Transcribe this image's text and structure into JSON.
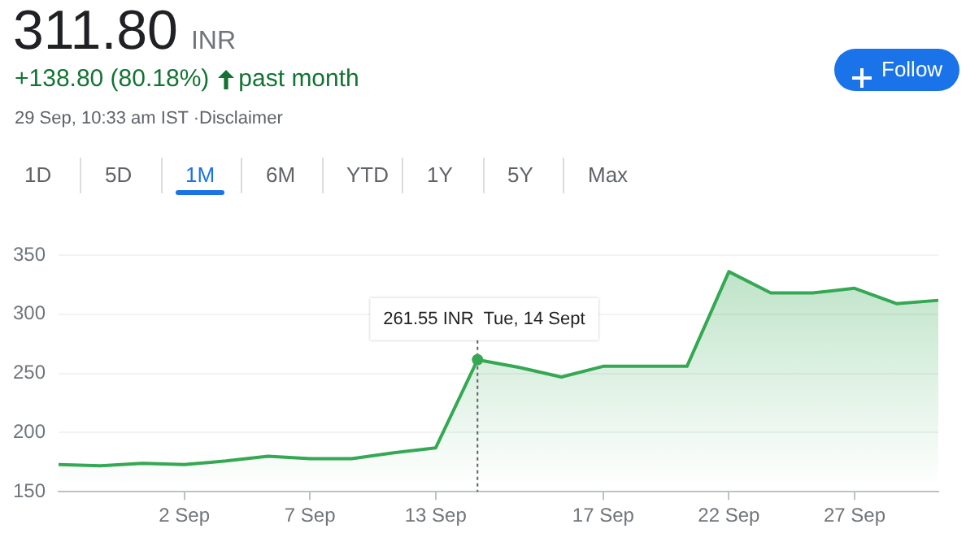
{
  "chart_data": {
    "type": "area",
    "title": "311.80",
    "subtitle": "+138.80 (80.18%)",
    "annotations": [
      "INR",
      "past month",
      "29 Sep, 10:33 am IST ·Disclaimer",
      "1D",
      "5D",
      "1M",
      "6M",
      "YTD",
      "1Y",
      "5Y",
      "Max",
      "Follow",
      {
        "text": "261.55 INR  Tue, 14 Sept",
        "y": 261.55
      }
    ],
    "categories": [
      null,
      null,
      null,
      "2 Sep",
      null,
      null,
      "7 Sep",
      null,
      null,
      "13 Sep",
      null,
      null,
      null,
      "17 Sep",
      null,
      null,
      "22 Sep",
      null,
      null,
      "27 Sep",
      null,
      null
    ],
    "series": [
      {
        "color": "#34a853",
        "values": [
          173,
          172,
          174,
          173,
          176,
          180,
          178,
          178,
          183,
          187,
          261.55,
          255,
          247,
          256,
          256,
          256,
          336,
          318,
          318,
          322,
          309,
          311.8
        ]
      }
    ],
    "ylim": [
      150,
      350
    ],
    "yticks": [
      150,
      200,
      250,
      300,
      350
    ],
    "grid": "y",
    "legend": false,
    "marker": "none"
  }
}
